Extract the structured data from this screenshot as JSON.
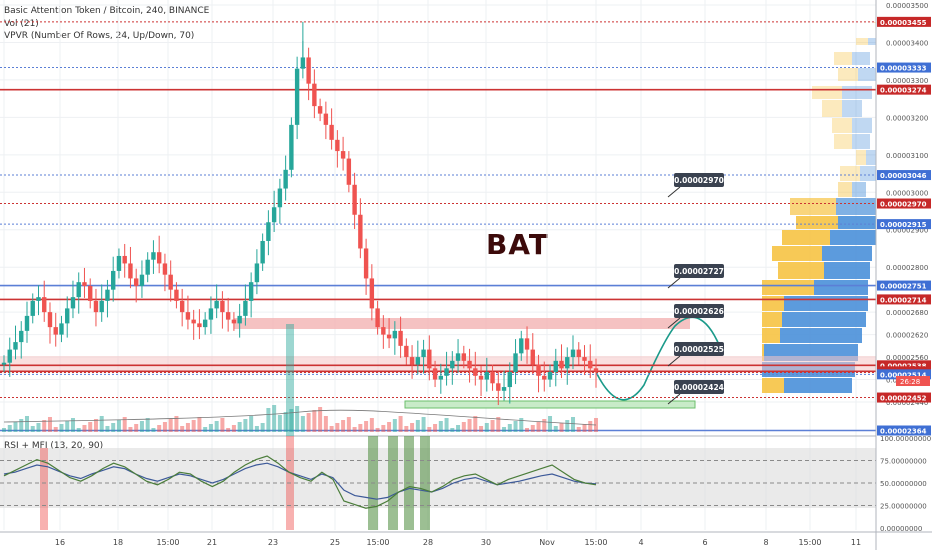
{
  "header": {
    "title": "Basic Attention Token / Bitcoin, 240, BINANCE",
    "vol": "Vol (21)",
    "vpvr": "VPVR (Number Of Rows, 24, Up/Down, 70)",
    "rsi_label": "RSI + MFI (13, 20, 90)"
  },
  "annotation": "BAT",
  "colors": {
    "up": "#26a69a",
    "down": "#ef5350",
    "red_line": "#cc3333",
    "blue_line": "#5b7fd6",
    "rsi": "#3d5a99",
    "mfi": "#4b7d3a",
    "callout": "#3a4250"
  },
  "chart_data": [
    {
      "type": "candlestick",
      "price_ticks": [
        "0.00003500",
        "0.00003400",
        "0.00003300",
        "0.00003200",
        "0.00003100",
        "0.00003000",
        "0.00002900",
        "0.00002800",
        "0.00002680",
        "0.00002620",
        "0.00002560",
        "0.00002500",
        "0.00002440"
      ],
      "x_ticks": [
        "16",
        "18",
        "15:00",
        "21",
        "23",
        "25",
        "15:00",
        "28",
        "30",
        "Nov",
        "15:00",
        "4",
        "6",
        "8",
        "15:00",
        "11"
      ],
      "ylim": [
        2.36e-05,
        3.5e-05
      ],
      "countdown": "26:28",
      "close_series": [
        2.545e-05,
        2.58e-05,
        2.6e-05,
        2.63e-05,
        2.67e-05,
        2.71e-05,
        2.72e-05,
        2.68e-05,
        2.64e-05,
        2.62e-05,
        2.65e-05,
        2.69e-05,
        2.72e-05,
        2.76e-05,
        2.75e-05,
        2.71e-05,
        2.68e-05,
        2.71e-05,
        2.74e-05,
        2.79e-05,
        2.83e-05,
        2.81e-05,
        2.77e-05,
        2.75e-05,
        2.78e-05,
        2.82e-05,
        2.84e-05,
        2.81e-05,
        2.78e-05,
        2.74e-05,
        2.71e-05,
        2.68e-05,
        2.66e-05,
        2.65e-05,
        2.64e-05,
        2.66e-05,
        2.69e-05,
        2.71e-05,
        2.68e-05,
        2.66e-05,
        2.65e-05,
        2.67e-05,
        2.71e-05,
        2.76e-05,
        2.81e-05,
        2.87e-05,
        2.92e-05,
        2.96e-05,
        3.01e-05,
        3.06e-05,
        3.18e-05,
        3.33e-05,
        3.36e-05,
        3.29e-05,
        3.23e-05,
        3.21e-05,
        3.18e-05,
        3.14e-05,
        3.11e-05,
        3.09e-05,
        3.02e-05,
        2.94e-05,
        2.85e-05,
        2.77e-05,
        2.69e-05,
        2.64e-05,
        2.62e-05,
        2.61e-05,
        2.63e-05,
        2.59e-05,
        2.56e-05,
        2.54e-05,
        2.56e-05,
        2.58e-05,
        2.53e-05,
        2.5e-05,
        2.51e-05,
        2.53e-05,
        2.55e-05,
        2.57e-05,
        2.55e-05,
        2.53e-05,
        2.51e-05,
        2.5e-05,
        2.52e-05,
        2.49e-05,
        2.47e-05,
        2.48e-05,
        2.52e-05,
        2.57e-05,
        2.61e-05,
        2.58e-05,
        2.54e-05,
        2.51e-05,
        2.5e-05,
        2.52e-05,
        2.55e-05,
        2.53e-05,
        2.56e-05,
        2.58e-05,
        2.56e-05,
        2.55e-05,
        2.53e-05,
        2.522e-05
      ],
      "horizontal_levels": [
        {
          "price": "0.00003455",
          "style": "red-dashed",
          "label_kind": "red"
        },
        {
          "price": "0.00003333",
          "style": "blue-dashed",
          "label_kind": "blue"
        },
        {
          "price": "0.00003274",
          "style": "red-solid",
          "label_kind": "red"
        },
        {
          "price": "0.00003046",
          "style": "blue-dashed",
          "label_kind": "blue"
        },
        {
          "price": "0.00002970",
          "style": "red-dashed",
          "label_kind": "red"
        },
        {
          "price": "0.00002915",
          "style": "blue-dashed",
          "label_kind": "blue"
        },
        {
          "price": "0.00002751",
          "style": "blue-solid",
          "label_kind": "blue"
        },
        {
          "price": "0.00002714",
          "style": "red-solid",
          "label_kind": "red"
        },
        {
          "price": "0.00002538",
          "style": "red-solid",
          "label_kind": "red"
        },
        {
          "price": "0.00002522",
          "style": "red-solid",
          "label_kind": "red"
        },
        {
          "price": "0.00002519",
          "style": "red-dashed",
          "label_kind": "red"
        },
        {
          "price": "0.00002514",
          "style": "blue-dashed",
          "label_kind": "blue"
        },
        {
          "price": "0.00002452",
          "style": "red-dashed",
          "label_kind": "red"
        },
        {
          "price": "0.00002364",
          "style": "blue-solid",
          "label_kind": "blue"
        }
      ],
      "callouts": [
        "0.00002970",
        "0.00002727",
        "0.00002626",
        "0.00002525",
        "0.00002424"
      ]
    },
    {
      "type": "line",
      "title": "RSI + MFI (13, 20, 90)",
      "y_ticks": [
        "100.00000000",
        "75.00000000",
        "50.00000000",
        "25.00000000",
        "0.00000000"
      ],
      "ylim": [
        0,
        100
      ],
      "series": [
        {
          "name": "RSI",
          "values": [
            60,
            62,
            66,
            70,
            68,
            63,
            58,
            55,
            60,
            64,
            68,
            66,
            60,
            55,
            52,
            56,
            60,
            58,
            54,
            50,
            54,
            60,
            66,
            70,
            72,
            68,
            62,
            58,
            54,
            60,
            56,
            42,
            36,
            34,
            32,
            34,
            40,
            44,
            42,
            40,
            44,
            50,
            54,
            56,
            52,
            48,
            50,
            52,
            55,
            58,
            60,
            56,
            52,
            50,
            49
          ]
        },
        {
          "name": "MFI",
          "values": [
            58,
            64,
            70,
            76,
            72,
            64,
            56,
            52,
            58,
            66,
            72,
            68,
            60,
            52,
            48,
            54,
            62,
            60,
            52,
            46,
            52,
            62,
            70,
            76,
            80,
            72,
            62,
            56,
            52,
            62,
            54,
            30,
            26,
            22,
            24,
            30,
            40,
            46,
            44,
            40,
            46,
            54,
            58,
            60,
            54,
            48,
            54,
            58,
            62,
            66,
            70,
            62,
            54,
            50,
            48
          ]
        }
      ]
    }
  ]
}
